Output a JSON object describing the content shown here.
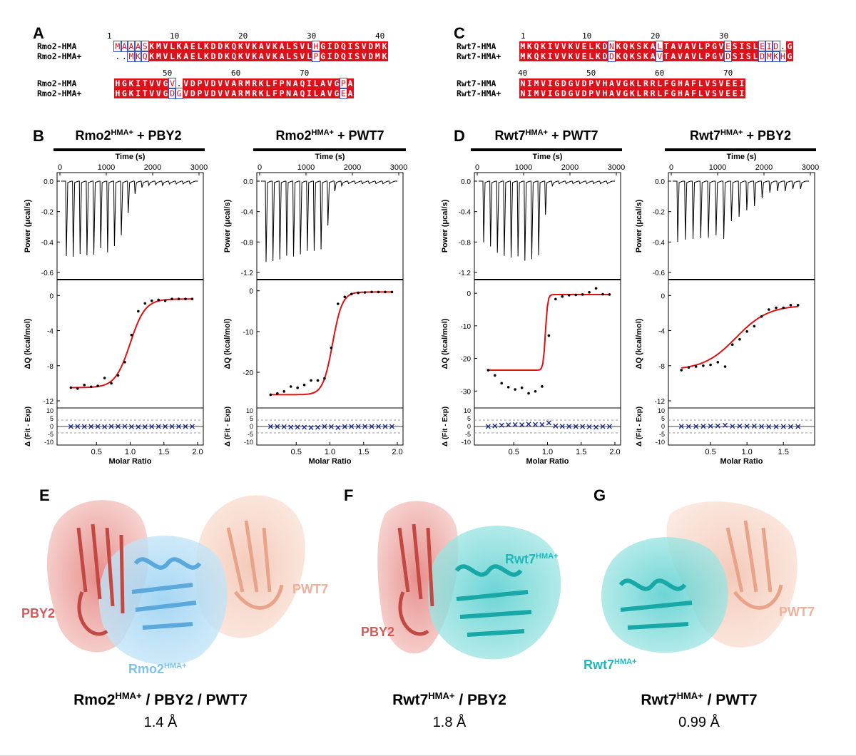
{
  "panels": {
    "A": "A",
    "B": "B",
    "C": "C",
    "D": "D",
    "E": "E",
    "F": "F",
    "G": "G"
  },
  "alignment_A": {
    "ruler1": [
      "1",
      "10",
      "20",
      "30",
      "40"
    ],
    "ruler2": [
      "50",
      "60",
      "70"
    ],
    "row1": [
      {
        "name": "Rmo2-HMA",
        "seq": "MAAASKMVLKAELKDDKQKVKAVKALSVLHGIDQISVDMK"
      },
      {
        "name": "Rmo2-HMA+",
        "seq": "..MKQKMVLKAELKDDKQKVKAVKALSVLPGIDQISVDMK"
      }
    ],
    "row2": [
      {
        "name": "Rmo2-HMA",
        "seq": "HGKITVVGV.VDPVDVVARMRKLFPNAQILAVGPA"
      },
      {
        "name": "Rmo2-HMA+",
        "seq": "HGKITVVGDGVDPVDVVARMRKLFPNAQILAVGEA"
      }
    ]
  },
  "alignment_C": {
    "ruler1": [
      "1",
      "10",
      "20",
      "30"
    ],
    "ruler2": [
      "40",
      "50",
      "60",
      "70"
    ],
    "row1": [
      {
        "name": "Rwt7-HMA",
        "seq": "MKQKIVVKVELKDNKQKSKALTAVAVLPGVESISLEID.G"
      },
      {
        "name": "Rwt7-HMA+",
        "seq": "MKQKIVVKVELKDDKQKSKAVTAVAVLPGVDSISLDMKHG"
      }
    ],
    "row2": [
      {
        "name": "Rwt7-HMA",
        "seq": "NIMVIGDGVDPVHAVGKLRRLFGHAFLVSVEEI"
      },
      {
        "name": "Rwt7-HMA+",
        "seq": "NIMVIGDGVDPVHAVGKLRRLFGHAFLVSVEEI"
      }
    ]
  },
  "itc": {
    "time_label": "Time (s)",
    "power_label": "Power (μcal/s)",
    "dq_label": "ΔQ (kcal/mol)",
    "resid_label": "Δ (Fit - Exp)",
    "molar_label": "Molar Ratio",
    "time_ticks": [
      "0",
      "1000",
      "2000",
      "3000"
    ],
    "resid_ticks": [
      "10",
      "5",
      "0",
      "-5",
      "-10"
    ],
    "plots": [
      {
        "title_main": "Rmo2",
        "title_sup": "HMA+",
        "title_rest": " + PBY2",
        "power_ticks": [
          "0.0",
          "-0.2",
          "-0.4",
          "-0.6"
        ],
        "dq_ticks": [
          "0",
          "-4",
          "-8",
          "-12"
        ],
        "mr_ticks": [
          "0.5",
          "1.0",
          "1.5",
          "2.0"
        ]
      },
      {
        "title_main": "Rmo2",
        "title_sup": "HMA+",
        "title_rest": " + PWT7",
        "power_ticks": [
          "0.0",
          "-0.4",
          "-0.8",
          "-1.2"
        ],
        "dq_ticks": [
          "0",
          "-10",
          "-20"
        ],
        "mr_ticks": [
          "0.5",
          "1.0",
          "1.5",
          "2.0"
        ]
      },
      {
        "title_main": "Rwt7",
        "title_sup": "HMA+",
        "title_rest": " + PWT7",
        "power_ticks": [
          "0.0",
          "-0.4",
          "-0.8",
          "-1.2"
        ],
        "dq_ticks": [
          "0",
          "-10",
          "-20",
          "-30"
        ],
        "mr_ticks": [
          "0.5",
          "1.0",
          "1.5",
          "2.0"
        ]
      },
      {
        "title_main": "Rwt7",
        "title_sup": "HMA+",
        "title_rest": " + PBY2",
        "power_ticks": [
          "0.0",
          "-0.2",
          "-0.4",
          "-0.6"
        ],
        "dq_ticks": [
          "0",
          "-4",
          "-8",
          "-12"
        ],
        "mr_ticks": [
          "0.5",
          "1.0",
          "1.5"
        ]
      }
    ]
  },
  "chart_data": [
    {
      "type": "scatter",
      "title": "Rmo2HMA+ + PBY2",
      "xlabel": "Molar Ratio",
      "ylabel": "ΔQ (kcal/mol)",
      "xlim": [
        0,
        2.0
      ],
      "ylim": [
        -12,
        1
      ],
      "series": [
        {
          "values_x": [
            0.12,
            0.22,
            0.32,
            0.42,
            0.52,
            0.62,
            0.72,
            0.82,
            0.92,
            1.02,
            1.12,
            1.22,
            1.32,
            1.42,
            1.52,
            1.62,
            1.72,
            1.82,
            1.92
          ],
          "values_y": [
            -10.5,
            -10.6,
            -10.2,
            -10.4,
            -10.3,
            -9.4,
            -10.0,
            -9.1,
            -7.6,
            -4.5,
            -1.8,
            -0.9,
            -0.6,
            -0.5,
            -0.6,
            -0.4,
            -0.4,
            -0.4,
            -0.4
          ]
        }
      ]
    },
    {
      "type": "scatter",
      "title": "Rmo2HMA+ + PWT7",
      "xlabel": "Molar Ratio",
      "ylabel": "ΔQ (kcal/mol)",
      "xlim": [
        0,
        2.0
      ],
      "ylim": [
        -27,
        1
      ],
      "series": [
        {
          "values_x": [
            0.12,
            0.22,
            0.32,
            0.42,
            0.52,
            0.62,
            0.72,
            0.82,
            0.92,
            1.02,
            1.12,
            1.22,
            1.32,
            1.42,
            1.52,
            1.62,
            1.72,
            1.82,
            1.92
          ],
          "values_y": [
            -25.5,
            -25.2,
            -24.7,
            -23.5,
            -23.8,
            -23.1,
            -22.0,
            -22.0,
            -21.5,
            -14.0,
            -3.2,
            -1.5,
            -0.8,
            -0.5,
            -0.4,
            -0.3,
            -0.3,
            -0.3,
            -0.3
          ]
        }
      ]
    },
    {
      "type": "scatter",
      "title": "Rwt7HMA+ + PWT7",
      "xlabel": "Molar Ratio",
      "ylabel": "ΔQ (kcal/mol)",
      "xlim": [
        0,
        2.0
      ],
      "ylim": [
        -33,
        2
      ],
      "series": [
        {
          "values_x": [
            0.12,
            0.22,
            0.32,
            0.42,
            0.52,
            0.62,
            0.72,
            0.82,
            0.92,
            1.02,
            1.12,
            1.22,
            1.32,
            1.42,
            1.52,
            1.62,
            1.72,
            1.82,
            1.92
          ],
          "values_y": [
            -23.6,
            -25.2,
            -27.6,
            -28.8,
            -29.5,
            -29.0,
            -30.7,
            -30.1,
            -28.6,
            -13.0,
            -1.8,
            -1.0,
            -0.6,
            -0.5,
            -0.4,
            0.3,
            1.5,
            -0.3,
            -0.4
          ]
        }
      ]
    },
    {
      "type": "scatter",
      "title": "Rwt7HMA+ + PBY2",
      "xlabel": "Molar Ratio",
      "ylabel": "ΔQ (kcal/mol)",
      "xlim": [
        0,
        1.85
      ],
      "ylim": [
        -12,
        1
      ],
      "series": [
        {
          "values_x": [
            0.1,
            0.2,
            0.3,
            0.4,
            0.5,
            0.6,
            0.7,
            0.8,
            0.9,
            1.0,
            1.1,
            1.2,
            1.3,
            1.4,
            1.5,
            1.6,
            1.7
          ],
          "values_y": [
            -8.5,
            -8.2,
            -8.1,
            -8.0,
            -7.9,
            -7.6,
            -8.1,
            -5.6,
            -5.0,
            -4.1,
            -3.5,
            -2.4,
            -1.6,
            -1.4,
            -1.4,
            -1.1,
            -1.1
          ]
        }
      ]
    }
  ],
  "structures": {
    "E": {
      "title_main": "Rmo2",
      "title_sup": "HMA+",
      "title_rest": " / PBY2 / PWT7",
      "rmsd": "1.4 Å",
      "labels": {
        "pby2": "PBY2",
        "pwt7": "PWT7",
        "rmo2_main": "Rmo2",
        "rmo2_sup": "HMA+"
      }
    },
    "F": {
      "title_main": "Rwt7",
      "title_sup": "HMA+",
      "title_rest": " / PBY2",
      "rmsd": "1.8 Å",
      "labels": {
        "pby2": "PBY2",
        "rwt7_main": "Rwt7",
        "rwt7_sup": "HMA+"
      }
    },
    "G": {
      "title_main": "Rwt7",
      "title_sup": "HMA+",
      "title_rest": " / PWT7",
      "rmsd": "0.99 Å",
      "labels": {
        "pwt7": "PWT7",
        "rwt7_main": "Rwt7",
        "rwt7_sup": "HMA+"
      }
    }
  },
  "colors": {
    "conserved": "#e0101a",
    "fit_line": "#e01010",
    "residual_marker": "#1c2a8a",
    "pby2": "#d45a58",
    "pwt7": "#f0b09a",
    "rmo2": "#7cc4ec",
    "rwt7": "#20b8b8"
  }
}
